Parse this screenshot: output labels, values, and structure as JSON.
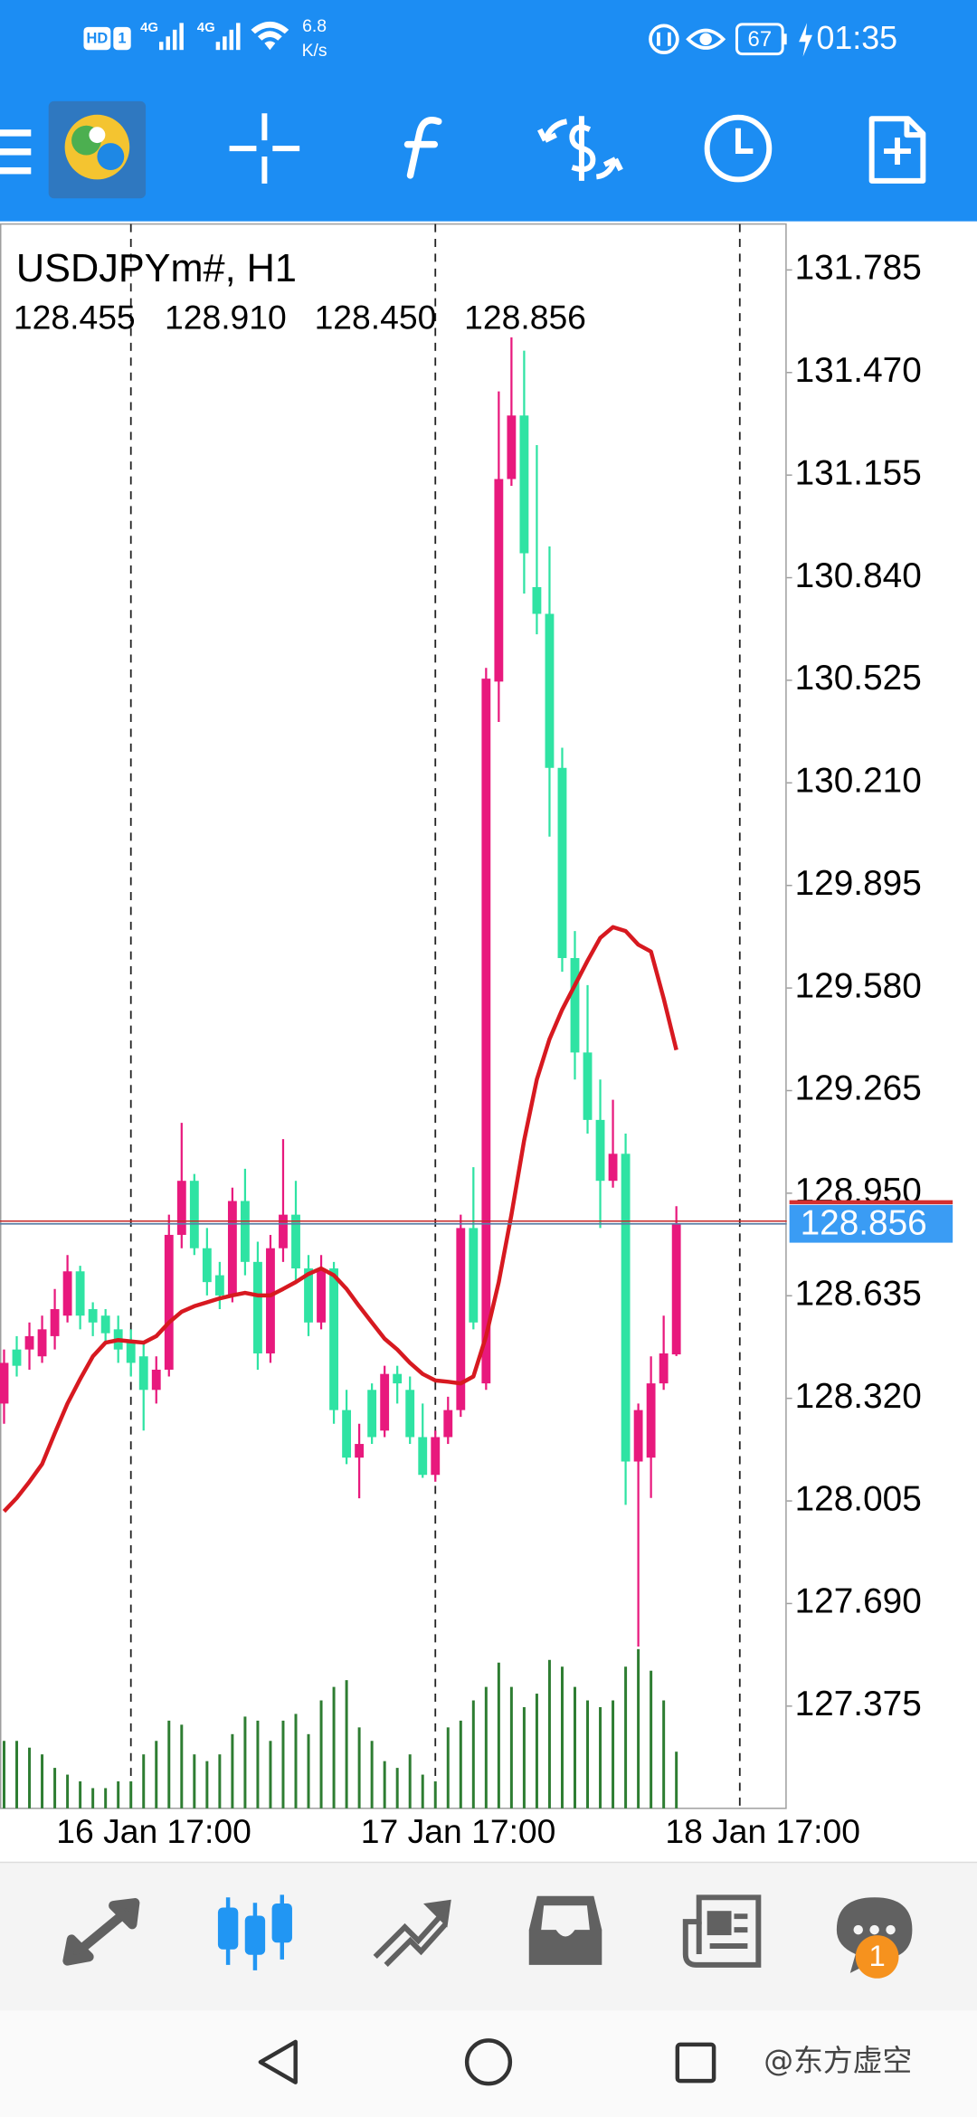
{
  "status_bar": {
    "network_labels": [
      "HD",
      "1",
      "4G",
      "4G"
    ],
    "speed": "6.8",
    "speed_unit": "K/s",
    "battery": "67",
    "time": "01:35"
  },
  "chart_data": {
    "type": "candlestick",
    "title": "USDJPYm#, H1",
    "header_ohlc": [
      "128.455",
      "128.910",
      "128.450",
      "128.856"
    ],
    "open": [
      128.304,
      128.47,
      128.47,
      128.449,
      128.511,
      128.574,
      128.71,
      128.594,
      128.574,
      128.532,
      128.491,
      128.449,
      128.346,
      128.408,
      128.822,
      128.988,
      128.781,
      128.698,
      128.636,
      128.926,
      128.739,
      128.458,
      128.781,
      128.884,
      128.719,
      128.553,
      128.719,
      128.284,
      128.138,
      128.346,
      128.221,
      128.395,
      128.346,
      128.201,
      128.085,
      128.201,
      128.284,
      128.843,
      128.366,
      130.521,
      131.143,
      131.338,
      130.811,
      130.729,
      130.256,
      129.672,
      129.382,
      129.175,
      128.988,
      129.071,
      128.126,
      128.138,
      128.366,
      128.455
    ],
    "high": [
      128.47,
      128.511,
      128.553,
      128.574,
      128.656,
      128.76,
      128.727,
      128.615,
      128.594,
      128.574,
      128.532,
      128.491,
      128.449,
      128.884,
      129.166,
      129.009,
      128.843,
      128.739,
      128.967,
      129.025,
      128.801,
      128.822,
      129.116,
      128.988,
      128.76,
      128.76,
      128.739,
      128.346,
      128.242,
      128.366,
      128.42,
      128.42,
      128.387,
      128.304,
      128.221,
      128.325,
      128.884,
      129.03,
      130.563,
      131.412,
      131.578,
      131.537,
      131.247,
      130.936,
      130.318,
      129.755,
      129.589,
      129.299,
      129.237,
      129.133,
      128.304,
      128.449,
      128.574,
      128.91
    ],
    "low": [
      128.242,
      128.387,
      128.408,
      128.429,
      128.47,
      128.553,
      128.532,
      128.511,
      128.491,
      128.429,
      128.387,
      128.221,
      128.304,
      128.387,
      128.781,
      128.76,
      128.636,
      128.594,
      128.615,
      128.698,
      128.408,
      128.429,
      128.739,
      128.677,
      128.511,
      128.532,
      128.242,
      128.118,
      128.013,
      128.18,
      128.201,
      128.304,
      128.18,
      128.076,
      128.064,
      128.18,
      128.263,
      128.532,
      128.346,
      130.397,
      131.122,
      130.791,
      130.666,
      130.045,
      129.63,
      129.299,
      129.133,
      128.843,
      128.967,
      127.993,
      127.558,
      128.014,
      128.346,
      128.45
    ],
    "close": [
      128.429,
      128.42,
      128.511,
      128.532,
      128.594,
      128.71,
      128.574,
      128.553,
      128.52,
      128.47,
      128.429,
      128.346,
      128.408,
      128.822,
      128.988,
      128.781,
      128.677,
      128.636,
      128.926,
      128.739,
      128.458,
      128.781,
      128.884,
      128.719,
      128.553,
      128.719,
      128.284,
      128.138,
      128.18,
      128.201,
      128.395,
      128.366,
      128.201,
      128.085,
      128.201,
      128.284,
      128.843,
      128.553,
      130.53,
      131.143,
      131.338,
      130.915,
      130.729,
      130.256,
      129.672,
      129.382,
      129.175,
      128.988,
      129.071,
      128.126,
      128.284,
      128.366,
      128.458,
      128.856
    ],
    "up_color": "#e8197d",
    "down_color": "#2fe3a3",
    "ma": [
      127.973,
      128.014,
      128.064,
      128.118,
      128.213,
      128.304,
      128.379,
      128.449,
      128.491,
      128.499,
      128.495,
      128.491,
      128.511,
      128.553,
      128.586,
      128.603,
      128.615,
      128.627,
      128.636,
      128.644,
      128.636,
      128.636,
      128.656,
      128.677,
      128.702,
      128.719,
      128.698,
      128.656,
      128.603,
      128.553,
      128.503,
      128.47,
      128.429,
      128.395,
      128.375,
      128.371,
      128.366,
      128.387,
      128.511,
      128.677,
      128.884,
      129.112,
      129.299,
      129.423,
      129.514,
      129.589,
      129.664,
      129.734,
      129.767,
      129.755,
      129.713,
      129.692,
      129.548,
      129.39
    ],
    "ma_color": "#d71920",
    "volume": [
      50,
      50,
      45,
      40,
      30,
      25,
      20,
      15,
      15,
      20,
      20,
      40,
      50,
      65,
      62,
      40,
      35,
      40,
      55,
      68,
      65,
      50,
      65,
      70,
      55,
      80,
      90,
      95,
      60,
      50,
      35,
      30,
      40,
      25,
      20,
      60,
      65,
      80,
      90,
      108,
      90,
      75,
      85,
      110,
      105,
      90,
      80,
      75,
      80,
      105,
      118,
      102,
      80,
      42
    ],
    "volume_color": "#2e7d32",
    "bid": 128.856,
    "bid_color": "#3a9cf4",
    "xlim": [
      -0.32,
      61.7
    ],
    "xticks": [
      {
        "value": 10,
        "label": "16 Jan 17:00"
      },
      {
        "value": 34,
        "label": "17 Jan 17:00"
      },
      {
        "value": 58,
        "label": "18 Jan 17:00"
      }
    ],
    "ylim": [
      127.061,
      131.926
    ],
    "yticks": [
      131.785,
      {
        "value": 131.47,
        "label": "131.470"
      },
      131.155,
      {
        "value": 130.84,
        "label": "130.840"
      },
      130.525,
      {
        "value": 130.21,
        "label": "130.210"
      },
      129.895,
      {
        "value": 129.58,
        "label": "129.580"
      },
      129.265,
      {
        "value": 128.95,
        "label": "128.950"
      },
      128.635,
      {
        "value": 128.32,
        "label": "128.320"
      },
      128.005,
      {
        "value": 127.69,
        "label": "127.690"
      },
      127.375
    ],
    "grid": true
  },
  "notification_badge": "1",
  "watermark": "@东方虚空"
}
